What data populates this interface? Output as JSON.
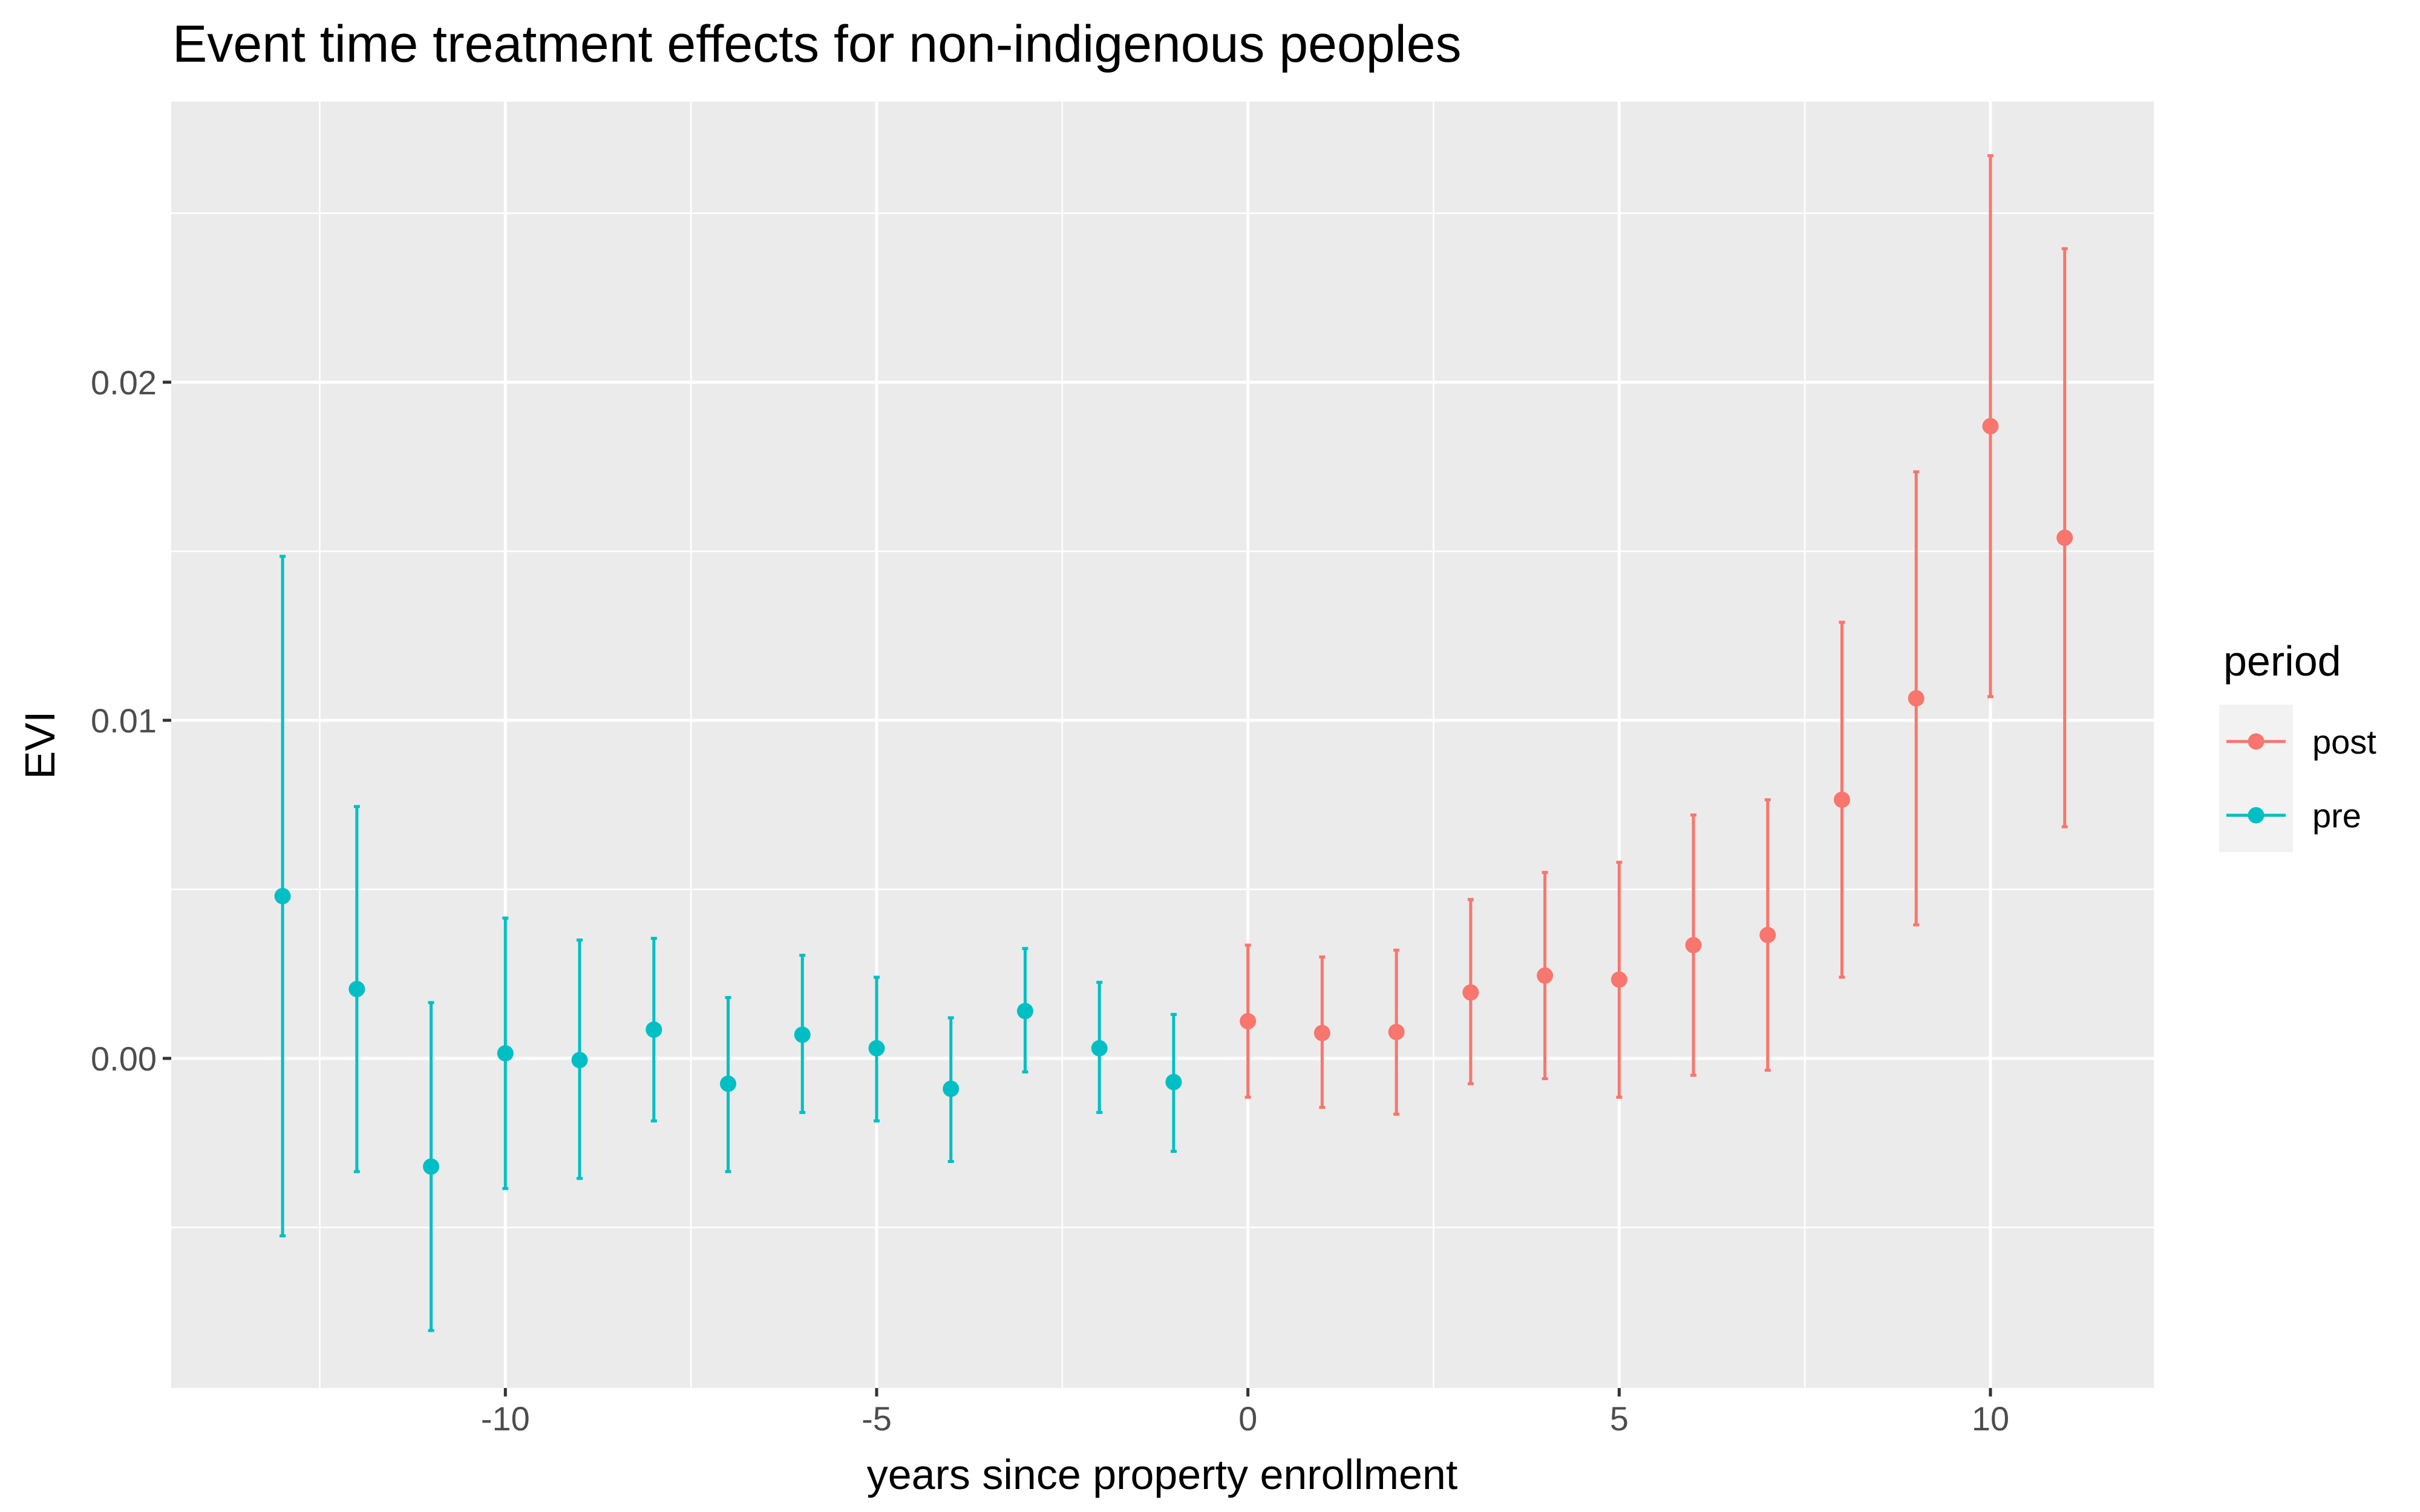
{
  "chart_data": {
    "type": "scatter",
    "title": "Event time treatment effects for non-indigenous peoples",
    "xlabel": "years since property enrollment",
    "ylabel": "EVI",
    "xlim": [
      -14.5,
      12.2
    ],
    "ylim": [
      -0.00975,
      0.0283
    ],
    "x_ticks": [
      -10,
      -5,
      0,
      5,
      10
    ],
    "x_tick_labels": [
      "-10",
      "-5",
      "0",
      "5",
      "10"
    ],
    "y_ticks": [
      0.0,
      0.01,
      0.02
    ],
    "y_tick_labels": [
      "0.00",
      "0.01",
      "0.02"
    ],
    "grid": true,
    "legend": {
      "title": "period",
      "position": "right"
    },
    "series": [
      {
        "name": "post",
        "color": "#F8766D",
        "x": [
          0,
          1,
          2,
          3,
          4,
          5,
          6,
          7,
          8,
          9,
          10,
          11
        ],
        "y": [
          0.0011,
          0.00075,
          0.00078,
          0.00195,
          0.00245,
          0.00233,
          0.00335,
          0.00365,
          0.00765,
          0.01065,
          0.0187,
          0.0154
        ],
        "lower": [
          -0.00115,
          -0.00145,
          -0.00165,
          -0.00075,
          -0.0006,
          -0.00115,
          -0.0005,
          -0.00035,
          0.0024,
          0.00395,
          0.0107,
          0.00685
        ],
        "upper": [
          0.00335,
          0.003,
          0.0032,
          0.0047,
          0.0055,
          0.0058,
          0.0072,
          0.00765,
          0.0129,
          0.01735,
          0.0267,
          0.02395
        ]
      },
      {
        "name": "pre",
        "color": "#00BFC4",
        "x": [
          -13,
          -12,
          -11,
          -10,
          -9,
          -8,
          -7,
          -6,
          -5,
          -4,
          -3,
          -2,
          -1
        ],
        "y": [
          0.0048,
          0.00205,
          -0.0032,
          0.00015,
          -5e-05,
          0.00085,
          -0.00075,
          0.0007,
          0.0003,
          -0.0009,
          0.0014,
          0.0003,
          -0.0007
        ],
        "lower": [
          -0.00525,
          -0.00335,
          -0.00805,
          -0.00385,
          -0.00355,
          -0.00185,
          -0.00335,
          -0.0016,
          -0.00185,
          -0.00305,
          -0.0004,
          -0.0016,
          -0.00275
        ],
        "upper": [
          0.01485,
          0.00745,
          0.00165,
          0.00415,
          0.0035,
          0.00355,
          0.0018,
          0.00305,
          0.0024,
          0.0012,
          0.00325,
          0.00225,
          0.0013
        ]
      }
    ]
  }
}
